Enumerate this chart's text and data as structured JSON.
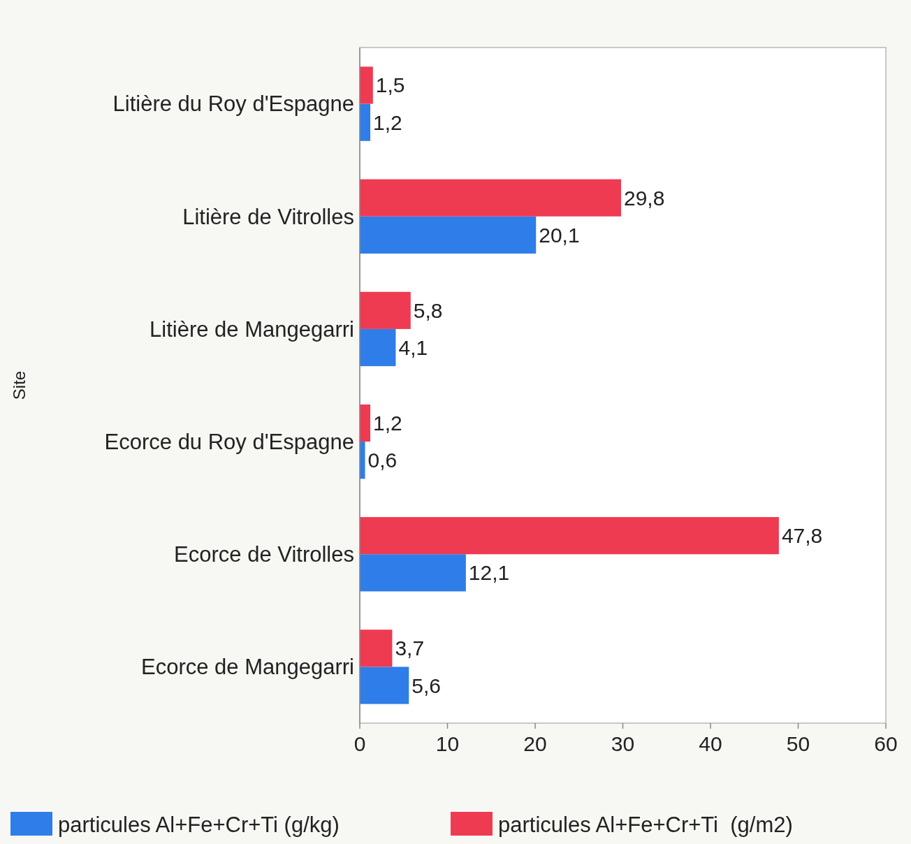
{
  "chart_data": {
    "type": "bar",
    "orientation": "horizontal",
    "ylabel": "Site",
    "categories": [
      "Litière du Roy d'Espagne",
      "Litière de Vitrolles",
      "Litière de Mangegarri",
      "Ecorce du Roy d'Espagne",
      "Ecorce de Vitrolles",
      "Ecorce de Mangegarri"
    ],
    "series": [
      {
        "name": "particules Al+Fe+Cr+Ti (g/kg)",
        "color": "#2f7de8",
        "values": [
          1.2,
          20.1,
          4.1,
          0.6,
          12.1,
          5.6
        ],
        "value_labels": [
          "1,2",
          "20,1",
          "4,1",
          "0,6",
          "12,1",
          "5,6"
        ]
      },
      {
        "name": "particules Al+Fe+Cr+Ti  (g/m2)",
        "color": "#ef3b52",
        "values": [
          1.5,
          29.8,
          5.8,
          1.2,
          47.8,
          3.7
        ],
        "value_labels": [
          "1,5",
          "29,8",
          "5,8",
          "1,2",
          "47,8",
          "3,7"
        ]
      }
    ],
    "xlim": [
      0,
      60
    ],
    "xticks": [
      0,
      10,
      20,
      30,
      40,
      50,
      60
    ],
    "grid": false,
    "legend": "bottom"
  }
}
